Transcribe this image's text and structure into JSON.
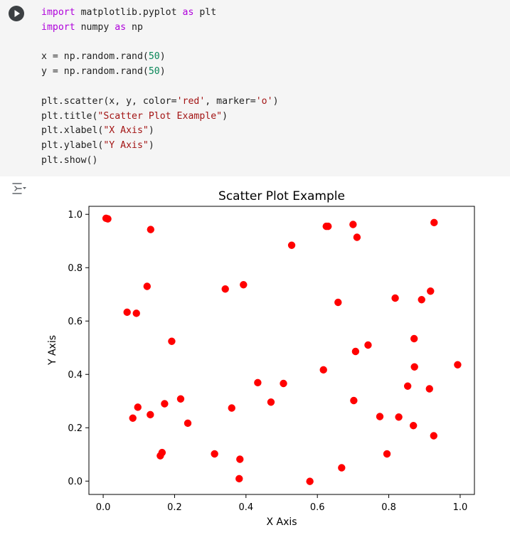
{
  "code": {
    "lines": [
      [
        {
          "t": "import",
          "c": "kw"
        },
        {
          "t": " matplotlib.pyplot ",
          "c": ""
        },
        {
          "t": "as",
          "c": "kw"
        },
        {
          "t": " plt",
          "c": ""
        }
      ],
      [
        {
          "t": "import",
          "c": "kw"
        },
        {
          "t": " numpy ",
          "c": ""
        },
        {
          "t": "as",
          "c": "kw"
        },
        {
          "t": " np",
          "c": ""
        }
      ],
      [],
      [
        {
          "t": "x = np.random.rand(",
          "c": ""
        },
        {
          "t": "50",
          "c": "num"
        },
        {
          "t": ")",
          "c": ""
        }
      ],
      [
        {
          "t": "y = np.random.rand(",
          "c": ""
        },
        {
          "t": "50",
          "c": "num"
        },
        {
          "t": ")",
          "c": ""
        }
      ],
      [],
      [
        {
          "t": "plt.scatter(x, y, color=",
          "c": ""
        },
        {
          "t": "'red'",
          "c": "str"
        },
        {
          "t": ", marker=",
          "c": ""
        },
        {
          "t": "'o'",
          "c": "str"
        },
        {
          "t": ")",
          "c": ""
        }
      ],
      [
        {
          "t": "plt.title(",
          "c": ""
        },
        {
          "t": "\"Scatter Plot Example\"",
          "c": "str"
        },
        {
          "t": ")",
          "c": ""
        }
      ],
      [
        {
          "t": "plt.xlabel(",
          "c": ""
        },
        {
          "t": "\"X Axis\"",
          "c": "str"
        },
        {
          "t": ")",
          "c": ""
        }
      ],
      [
        {
          "t": "plt.ylabel(",
          "c": ""
        },
        {
          "t": "\"Y Axis\"",
          "c": "str"
        },
        {
          "t": ")",
          "c": ""
        }
      ],
      [
        {
          "t": "plt.show()",
          "c": ""
        }
      ]
    ]
  },
  "chart_data": {
    "type": "scatter",
    "title": "Scatter Plot Example",
    "xlabel": "X Axis",
    "ylabel": "Y Axis",
    "xlim": [
      -0.04,
      1.04
    ],
    "ylim": [
      -0.05,
      1.03
    ],
    "xticks": [
      "0.0",
      "0.2",
      "0.4",
      "0.6",
      "0.8",
      "1.0"
    ],
    "yticks": [
      "0.0",
      "0.2",
      "0.4",
      "0.6",
      "0.8",
      "1.0"
    ],
    "marker_color": "#ff0000",
    "grid": false,
    "points": [
      [
        0.008,
        0.985
      ],
      [
        0.013,
        0.983
      ],
      [
        0.133,
        0.943
      ],
      [
        0.123,
        0.73
      ],
      [
        0.067,
        0.633
      ],
      [
        0.093,
        0.629
      ],
      [
        0.192,
        0.524
      ],
      [
        0.342,
        0.72
      ],
      [
        0.393,
        0.736
      ],
      [
        0.528,
        0.884
      ],
      [
        0.625,
        0.955
      ],
      [
        0.63,
        0.955
      ],
      [
        0.7,
        0.962
      ],
      [
        0.711,
        0.914
      ],
      [
        0.927,
        0.969
      ],
      [
        0.658,
        0.67
      ],
      [
        0.818,
        0.686
      ],
      [
        0.892,
        0.68
      ],
      [
        0.917,
        0.712
      ],
      [
        0.871,
        0.534
      ],
      [
        0.742,
        0.51
      ],
      [
        0.707,
        0.486
      ],
      [
        0.617,
        0.417
      ],
      [
        0.872,
        0.428
      ],
      [
        0.993,
        0.436
      ],
      [
        0.433,
        0.369
      ],
      [
        0.505,
        0.366
      ],
      [
        0.853,
        0.356
      ],
      [
        0.914,
        0.346
      ],
      [
        0.217,
        0.308
      ],
      [
        0.172,
        0.29
      ],
      [
        0.097,
        0.277
      ],
      [
        0.47,
        0.296
      ],
      [
        0.36,
        0.274
      ],
      [
        0.702,
        0.302
      ],
      [
        0.132,
        0.249
      ],
      [
        0.083,
        0.236
      ],
      [
        0.775,
        0.242
      ],
      [
        0.828,
        0.24
      ],
      [
        0.237,
        0.217
      ],
      [
        0.869,
        0.208
      ],
      [
        0.926,
        0.17
      ],
      [
        0.165,
        0.107
      ],
      [
        0.16,
        0.095
      ],
      [
        0.312,
        0.102
      ],
      [
        0.795,
        0.102
      ],
      [
        0.383,
        0.082
      ],
      [
        0.668,
        0.05
      ],
      [
        0.381,
        0.009
      ],
      [
        0.579,
        -0.001
      ]
    ]
  }
}
